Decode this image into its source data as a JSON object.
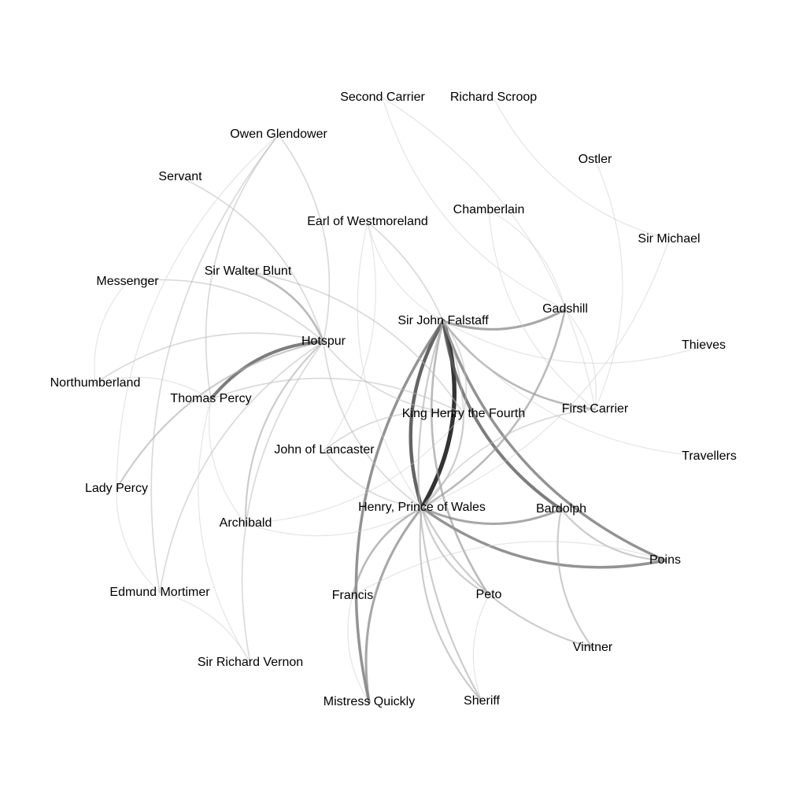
{
  "nodes": [
    {
      "id": "second_carrier",
      "label": "Second Carrier"
    },
    {
      "id": "richard_scroop",
      "label": "Richard Scroop"
    },
    {
      "id": "owen_glendower",
      "label": "Owen Glendower"
    },
    {
      "id": "ostler",
      "label": "Ostler"
    },
    {
      "id": "servant",
      "label": "Servant"
    },
    {
      "id": "chamberlain",
      "label": "Chamberlain"
    },
    {
      "id": "earl_westmoreland",
      "label": "Earl of Westmoreland"
    },
    {
      "id": "sir_michael",
      "label": "Sir Michael"
    },
    {
      "id": "messenger",
      "label": "Messenger"
    },
    {
      "id": "sir_walter_blunt",
      "label": "Sir Walter Blunt"
    },
    {
      "id": "gadshill",
      "label": "Gadshill"
    },
    {
      "id": "sir_john_falstaff",
      "label": "Sir John Falstaff"
    },
    {
      "id": "hotspur",
      "label": "Hotspur"
    },
    {
      "id": "thieves",
      "label": "Thieves"
    },
    {
      "id": "northumberland",
      "label": "Northumberland"
    },
    {
      "id": "thomas_percy",
      "label": "Thomas Percy"
    },
    {
      "id": "first_carrier",
      "label": "First Carrier"
    },
    {
      "id": "king_henry",
      "label": "King Henry the Fourth"
    },
    {
      "id": "john_lancaster",
      "label": "John of Lancaster"
    },
    {
      "id": "travellers",
      "label": "Travellers"
    },
    {
      "id": "lady_percy",
      "label": "Lady Percy"
    },
    {
      "id": "prince_wales",
      "label": "Henry, Prince of Wales"
    },
    {
      "id": "bardolph",
      "label": "Bardolph"
    },
    {
      "id": "archibald",
      "label": "Archibald"
    },
    {
      "id": "poins",
      "label": "Poins"
    },
    {
      "id": "edmund_mortimer",
      "label": "Edmund Mortimer"
    },
    {
      "id": "francis",
      "label": "Francis"
    },
    {
      "id": "peto",
      "label": "Peto"
    },
    {
      "id": "vintner",
      "label": "Vintner"
    },
    {
      "id": "sir_richard_vernon",
      "label": "Sir Richard Vernon"
    },
    {
      "id": "mistress_quickly",
      "label": "Mistress Quickly"
    },
    {
      "id": "sheriff",
      "label": "Sheriff"
    }
  ],
  "edges": [
    {
      "source": "prince_wales",
      "target": "sir_john_falstaff",
      "weight": 10
    },
    {
      "source": "sir_john_falstaff",
      "target": "prince_wales",
      "weight": 8
    },
    {
      "source": "sir_john_falstaff",
      "target": "bardolph",
      "weight": 7
    },
    {
      "source": "sir_john_falstaff",
      "target": "poins",
      "weight": 6
    },
    {
      "source": "prince_wales",
      "target": "poins",
      "weight": 6
    },
    {
      "source": "hotspur",
      "target": "thomas_percy",
      "weight": 7
    },
    {
      "source": "sir_john_falstaff",
      "target": "mistress_quickly",
      "weight": 6
    },
    {
      "source": "prince_wales",
      "target": "mistress_quickly",
      "weight": 5
    },
    {
      "source": "sir_john_falstaff",
      "target": "gadshill",
      "weight": 5
    },
    {
      "source": "sir_john_falstaff",
      "target": "peto",
      "weight": 4
    },
    {
      "source": "prince_wales",
      "target": "bardolph",
      "weight": 5
    },
    {
      "source": "sir_john_falstaff",
      "target": "first_carrier",
      "weight": 4
    },
    {
      "source": "prince_wales",
      "target": "gadshill",
      "weight": 4
    },
    {
      "source": "hotspur",
      "target": "sir_walter_blunt",
      "weight": 4
    },
    {
      "source": "prince_wales",
      "target": "francis",
      "weight": 4
    },
    {
      "source": "prince_wales",
      "target": "peto",
      "weight": 3
    },
    {
      "source": "prince_wales",
      "target": "sheriff",
      "weight": 3
    },
    {
      "source": "prince_wales",
      "target": "vintner",
      "weight": 3
    },
    {
      "source": "sir_john_falstaff",
      "target": "sheriff",
      "weight": 3
    },
    {
      "source": "prince_wales",
      "target": "king_henry",
      "weight": 3
    },
    {
      "source": "bardolph",
      "target": "vintner",
      "weight": 3
    },
    {
      "source": "bardolph",
      "target": "poins",
      "weight": 3
    },
    {
      "source": "hotspur",
      "target": "lady_percy",
      "weight": 3
    },
    {
      "source": "hotspur",
      "target": "archibald",
      "weight": 3
    },
    {
      "source": "hotspur",
      "target": "owen_glendower",
      "weight": 2
    },
    {
      "source": "hotspur",
      "target": "edmund_mortimer",
      "weight": 2
    },
    {
      "source": "hotspur",
      "target": "northumberland",
      "weight": 2
    },
    {
      "source": "hotspur",
      "target": "sir_richard_vernon",
      "weight": 2
    },
    {
      "source": "hotspur",
      "target": "king_henry",
      "weight": 2
    },
    {
      "source": "hotspur",
      "target": "prince_wales",
      "weight": 2
    },
    {
      "source": "hotspur",
      "target": "messenger",
      "weight": 2
    },
    {
      "source": "hotspur",
      "target": "servant",
      "weight": 2
    },
    {
      "source": "king_henry",
      "target": "earl_westmoreland",
      "weight": 2
    },
    {
      "source": "king_henry",
      "target": "sir_walter_blunt",
      "weight": 2
    },
    {
      "source": "king_henry",
      "target": "john_lancaster",
      "weight": 2
    },
    {
      "source": "king_henry",
      "target": "thomas_percy",
      "weight": 2
    },
    {
      "source": "king_henry",
      "target": "sir_john_falstaff",
      "weight": 2
    },
    {
      "source": "owen_glendower",
      "target": "edmund_mortimer",
      "weight": 2
    },
    {
      "source": "owen_glendower",
      "target": "thomas_percy",
      "weight": 2
    },
    {
      "source": "owen_glendower",
      "target": "lady_percy",
      "weight": 1
    },
    {
      "source": "thomas_percy",
      "target": "sir_richard_vernon",
      "weight": 1
    },
    {
      "source": "thomas_percy",
      "target": "archibald",
      "weight": 1
    },
    {
      "source": "thomas_percy",
      "target": "northumberland",
      "weight": 1
    },
    {
      "source": "john_lancaster",
      "target": "prince_wales",
      "weight": 2
    },
    {
      "source": "john_lancaster",
      "target": "earl_westmoreland",
      "weight": 1
    },
    {
      "source": "earl_westmoreland",
      "target": "sir_john_falstaff",
      "weight": 1
    },
    {
      "source": "earl_westmoreland",
      "target": "prince_wales",
      "weight": 1
    },
    {
      "source": "first_carrier",
      "target": "prince_wales",
      "weight": 2
    },
    {
      "source": "first_carrier",
      "target": "gadshill",
      "weight": 1
    },
    {
      "source": "first_carrier",
      "target": "second_carrier",
      "weight": 1
    },
    {
      "source": "first_carrier",
      "target": "ostler",
      "weight": 1
    },
    {
      "source": "gadshill",
      "target": "chamberlain",
      "weight": 1
    },
    {
      "source": "sir_john_falstaff",
      "target": "travellers",
      "weight": 1
    },
    {
      "source": "sir_john_falstaff",
      "target": "thieves",
      "weight": 1
    },
    {
      "source": "prince_wales",
      "target": "sir_michael",
      "weight": 1
    },
    {
      "source": "richard_scroop",
      "target": "sir_michael",
      "weight": 1
    },
    {
      "source": "archibald",
      "target": "prince_wales",
      "weight": 1
    },
    {
      "source": "archibald",
      "target": "king_henry",
      "weight": 1
    },
    {
      "source": "sir_richard_vernon",
      "target": "edmund_mortimer",
      "weight": 1
    },
    {
      "source": "messenger",
      "target": "northumberland",
      "weight": 1
    },
    {
      "source": "lady_percy",
      "target": "edmund_mortimer",
      "weight": 1
    },
    {
      "source": "francis",
      "target": "mistress_quickly",
      "weight": 1
    },
    {
      "source": "peto",
      "target": "sheriff",
      "weight": 1
    },
    {
      "source": "poins",
      "target": "francis",
      "weight": 1
    },
    {
      "source": "second_carrier",
      "target": "gadshill",
      "weight": 1
    },
    {
      "source": "chamberlain",
      "target": "first_carrier",
      "weight": 1
    }
  ]
}
